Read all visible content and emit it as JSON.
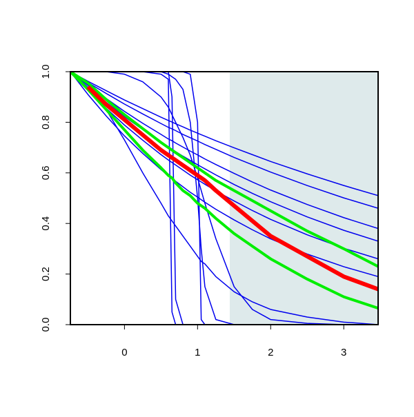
{
  "chart_data": {
    "type": "line",
    "x": [
      -0.74,
      -0.5,
      -0.25,
      0,
      0.25,
      0.5,
      0.6,
      0.65,
      0.7,
      0.8,
      0.9,
      1,
      1.05,
      1.1,
      1.25,
      1.5,
      1.75,
      2,
      2.5,
      3,
      3.47
    ],
    "xlim": [
      -0.74,
      3.47
    ],
    "xticks": [
      0,
      1,
      2,
      3
    ],
    "ylim": [
      0,
      1
    ],
    "yticks": [
      {
        "value": 0,
        "label": "0.0"
      },
      0.2,
      0.4,
      0.6,
      0.8,
      {
        "value": 1,
        "label": "1.0"
      }
    ],
    "shaded_region": [
      1.44,
      3.47
    ],
    "shaded_color": "#deeaeb",
    "series": [
      {
        "color": "#0000ee",
        "width": 1.5,
        "values": [
          1,
          0.962,
          0.925,
          0.888,
          0.854,
          0.82,
          0.807,
          0.801,
          0.794,
          0.782,
          0.769,
          0.757,
          0.751,
          0.745,
          0.727,
          0.699,
          0.672,
          0.645,
          0.596,
          0.55,
          0.51
        ]
      },
      {
        "color": "#0000ee",
        "width": 1.5,
        "values": [
          1,
          0.957,
          0.914,
          0.872,
          0.833,
          0.795,
          0.78,
          0.774,
          0.767,
          0.752,
          0.739,
          0.726,
          0.719,
          0.712,
          0.693,
          0.661,
          0.632,
          0.603,
          0.55,
          0.501,
          0.46
        ]
      },
      {
        "color": "#0000ee",
        "width": 1.5,
        "values": [
          1,
          0.946,
          0.894,
          0.843,
          0.796,
          0.752,
          0.734,
          0.727,
          0.718,
          0.702,
          0.686,
          0.671,
          0.663,
          0.655,
          0.633,
          0.598,
          0.564,
          0.532,
          0.475,
          0.423,
          0.38
        ]
      },
      {
        "color": "#0000ee",
        "width": 1.5,
        "values": [
          1,
          0.939,
          0.879,
          0.823,
          0.771,
          0.721,
          0.702,
          0.694,
          0.684,
          0.666,
          0.649,
          0.632,
          0.624,
          0.616,
          0.592,
          0.554,
          0.519,
          0.486,
          0.426,
          0.373,
          0.33
        ]
      },
      {
        "color": "#0000ee",
        "width": 1.5,
        "values": [
          1,
          0.926,
          0.855,
          0.789,
          0.729,
          0.672,
          0.651,
          0.641,
          0.631,
          0.611,
          0.591,
          0.573,
          0.564,
          0.555,
          0.529,
          0.489,
          0.451,
          0.416,
          0.355,
          0.302,
          0.26
        ]
      },
      {
        "color": "#0000ee",
        "width": 1.5,
        "values": [
          1,
          0.91,
          0.825,
          0.746,
          0.677,
          0.613,
          0.589,
          0.578,
          0.567,
          0.545,
          0.523,
          0.504,
          0.494,
          0.484,
          0.456,
          0.414,
          0.375,
          0.339,
          0.279,
          0.229,
          0.19
        ]
      },
      {
        "color": "#0000ee",
        "width": 1.5,
        "values": [
          1,
          1,
          1,
          1,
          1,
          0.99,
          0.97,
          0.05,
          0,
          0,
          0,
          0,
          0,
          0,
          0,
          0,
          0,
          0,
          0,
          0,
          0
        ]
      },
      {
        "color": "#0000ee",
        "width": 1.5,
        "values": [
          1,
          1,
          1,
          1,
          1,
          1,
          1,
          0.9,
          0.1,
          0,
          0,
          0,
          0,
          0,
          0,
          0,
          0,
          0,
          0,
          0,
          0
        ]
      },
      {
        "color": "#0000ee",
        "width": 1.5,
        "values": [
          1,
          1,
          1,
          1,
          1,
          1,
          1,
          1,
          1,
          1,
          0.99,
          0.8,
          0.02,
          0,
          0,
          0,
          0,
          0,
          0,
          0,
          0
        ]
      },
      {
        "color": "#0000ee",
        "width": 1.5,
        "values": [
          1,
          1,
          1,
          1,
          1,
          1,
          0.99,
          0.98,
          0.97,
          0.93,
          0.8,
          0.5,
          0.3,
          0.15,
          0.02,
          0,
          0,
          0,
          0,
          0,
          0
        ]
      },
      {
        "color": "#0000ee",
        "width": 1.5,
        "values": [
          1,
          1,
          1,
          0.99,
          0.96,
          0.9,
          0.86,
          0.83,
          0.8,
          0.74,
          0.67,
          0.58,
          0.53,
          0.48,
          0.34,
          0.15,
          0.06,
          0.02,
          0.005,
          0,
          0
        ]
      },
      {
        "color": "#0000ee",
        "width": 1.5,
        "values": [
          1,
          0.95,
          0.85,
          0.73,
          0.6,
          0.48,
          0.43,
          0.41,
          0.39,
          0.35,
          0.31,
          0.27,
          0.25,
          0.24,
          0.19,
          0.13,
          0.09,
          0.06,
          0.03,
          0.01,
          0
        ]
      },
      {
        "color": "#00ee00",
        "width": 4,
        "values": [
          1,
          0.955,
          0.89,
          0.83,
          0.775,
          0.72,
          0.7,
          0.69,
          0.68,
          0.66,
          0.64,
          0.62,
          0.61,
          0.6,
          0.57,
          0.53,
          0.49,
          0.45,
          0.37,
          0.3,
          0.23
        ]
      },
      {
        "color": "#00ee00",
        "width": 4,
        "values": [
          1,
          0.93,
          0.85,
          0.77,
          0.69,
          0.62,
          0.59,
          0.58,
          0.56,
          0.53,
          0.51,
          0.48,
          0.47,
          0.46,
          0.42,
          0.36,
          0.31,
          0.26,
          0.18,
          0.11,
          0.065
        ]
      },
      {
        "color": "#ff0000",
        "width": 6,
        "values": [
          null,
          0.94,
          0.87,
          0.81,
          0.75,
          0.69,
          0.67,
          0.66,
          0.65,
          0.63,
          0.61,
          0.59,
          0.58,
          0.57,
          0.53,
          0.47,
          0.41,
          0.35,
          0.27,
          0.19,
          0.14
        ]
      }
    ]
  }
}
